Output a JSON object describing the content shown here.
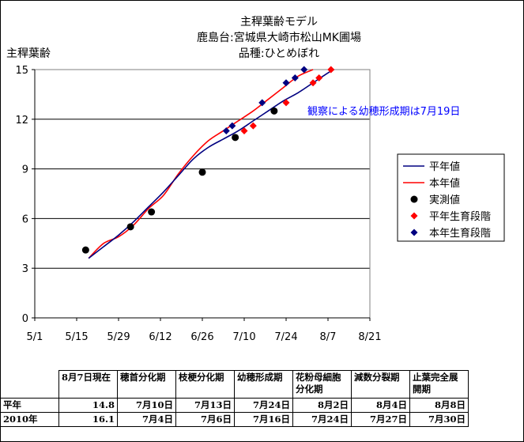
{
  "chart_data": {
    "type": "line",
    "title": [
      "主稈葉齢モデル",
      "鹿島台:宮城県大崎市松山MK圃場",
      "品種:ひとめぼれ"
    ],
    "ylabel": "主稈葉齢",
    "xlabel": "",
    "ylim": [
      0,
      15
    ],
    "yticks": [
      0,
      3,
      6,
      9,
      12,
      15
    ],
    "xlim": [
      "5/1",
      "8/21"
    ],
    "xticks": [
      "5/1",
      "5/15",
      "5/29",
      "6/12",
      "6/26",
      "7/10",
      "7/24",
      "8/7",
      "8/21"
    ],
    "grid": "horizontal",
    "legend_position": "right",
    "series": [
      {
        "name": "平年値",
        "kind": "line",
        "color": "#000080",
        "x": [
          "5/19",
          "5/24",
          "5/29",
          "6/3",
          "6/8",
          "6/13",
          "6/18",
          "6/23",
          "6/28",
          "7/3",
          "7/8",
          "7/13",
          "7/18",
          "7/23",
          "7/28",
          "8/2",
          "8/7",
          "8/9"
        ],
        "y": [
          3.6,
          4.3,
          5.0,
          5.8,
          6.7,
          7.6,
          8.6,
          9.6,
          10.3,
          10.8,
          11.3,
          11.9,
          12.5,
          13.1,
          13.6,
          14.2,
          14.8,
          15.0
        ]
      },
      {
        "name": "本年値",
        "kind": "line",
        "color": "#ff0000",
        "x": [
          "5/19",
          "5/24",
          "5/29",
          "6/3",
          "6/8",
          "6/13",
          "6/18",
          "6/23",
          "6/28",
          "7/3",
          "7/8",
          "7/13",
          "7/18",
          "7/23",
          "7/28",
          "8/2"
        ],
        "y": [
          3.6,
          4.5,
          4.9,
          5.6,
          6.6,
          7.4,
          8.7,
          9.8,
          10.7,
          11.3,
          11.9,
          12.5,
          13.2,
          13.9,
          14.6,
          15.0
        ]
      },
      {
        "name": "実測値",
        "kind": "marker",
        "color": "#000000",
        "x": [
          "5/18",
          "6/2",
          "6/9",
          "6/26",
          "7/7",
          "7/20"
        ],
        "y": [
          4.1,
          5.5,
          6.4,
          8.8,
          10.9,
          12.5
        ]
      },
      {
        "name": "平年生育段階",
        "kind": "marker",
        "color": "#ff0000",
        "x": [
          "7/10",
          "7/13",
          "7/24",
          "8/2",
          "8/4",
          "8/8"
        ],
        "y": [
          11.3,
          11.6,
          13.0,
          14.2,
          14.5,
          15.0
        ]
      },
      {
        "name": "本年生育段階",
        "kind": "marker",
        "color": "#000080",
        "x": [
          "7/4",
          "7/6",
          "7/16",
          "7/24",
          "7/27",
          "7/30"
        ],
        "y": [
          11.3,
          11.6,
          13.0,
          14.2,
          14.5,
          15.0
        ]
      }
    ],
    "annotations": [
      {
        "text": "観察による幼穂形成期は7月19日",
        "color": "#0000ff"
      }
    ]
  },
  "table": {
    "headers": [
      "8月7日現在",
      "穂首分化期",
      "枝梗分化期",
      "幼穂形成期",
      "花粉母細胞分化期",
      "減数分裂期",
      "止葉完全展開期"
    ],
    "rows": [
      {
        "label": "平年",
        "values": [
          "14.8",
          "7月10日",
          "7月13日",
          "7月24日",
          "8月2日",
          "8月4日",
          "8月8日"
        ]
      },
      {
        "label": "2010年",
        "values": [
          "16.1",
          "7月4日",
          "7月6日",
          "7月16日",
          "7月24日",
          "7月27日",
          "7月30日"
        ]
      }
    ]
  }
}
